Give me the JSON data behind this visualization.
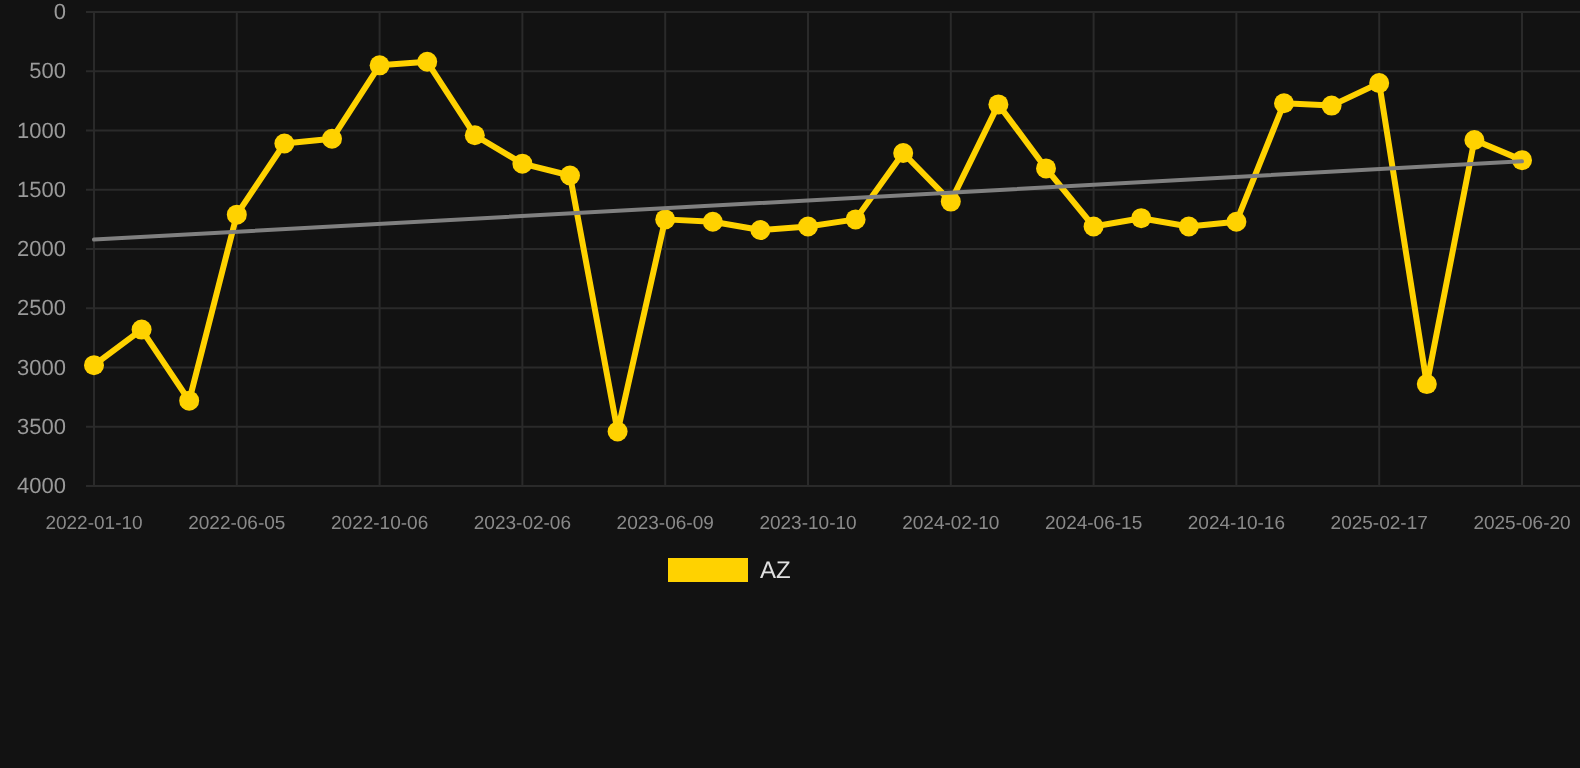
{
  "chart_data": {
    "type": "line",
    "categories": [
      "2022-01-10",
      null,
      null,
      "2022-06-05",
      null,
      null,
      "2022-10-06",
      null,
      null,
      "2023-02-06",
      null,
      null,
      "2023-06-09",
      null,
      null,
      "2023-10-10",
      null,
      null,
      "2024-02-10",
      null,
      null,
      "2024-06-15",
      null,
      null,
      "2024-10-16",
      null,
      null,
      "2025-02-17",
      null,
      null,
      "2025-06-20"
    ],
    "series": [
      {
        "name": "AZ",
        "color": "#ffd200",
        "marker": "circle",
        "values": [
          2980,
          2680,
          3280,
          1710,
          1110,
          1070,
          450,
          420,
          1040,
          1280,
          1380,
          3540,
          1750,
          1770,
          1840,
          1810,
          1750,
          1190,
          1600,
          780,
          1320,
          1810,
          1740,
          1810,
          1770,
          770,
          790,
          600,
          3140,
          1080,
          1250
        ]
      },
      {
        "type": "line",
        "color": "#808080",
        "marker": "none",
        "values": [
          1920,
          null,
          null,
          null,
          null,
          null,
          null,
          null,
          null,
          null,
          null,
          null,
          null,
          null,
          null,
          null,
          null,
          null,
          null,
          null,
          null,
          null,
          null,
          null,
          null,
          null,
          null,
          null,
          null,
          null,
          1260
        ]
      }
    ],
    "ylim": [
      4000,
      0
    ],
    "yticks": [
      0,
      500,
      1000,
      1500,
      2000,
      2500,
      3000,
      3500,
      4000
    ],
    "grid": true,
    "legend": "bottom"
  }
}
